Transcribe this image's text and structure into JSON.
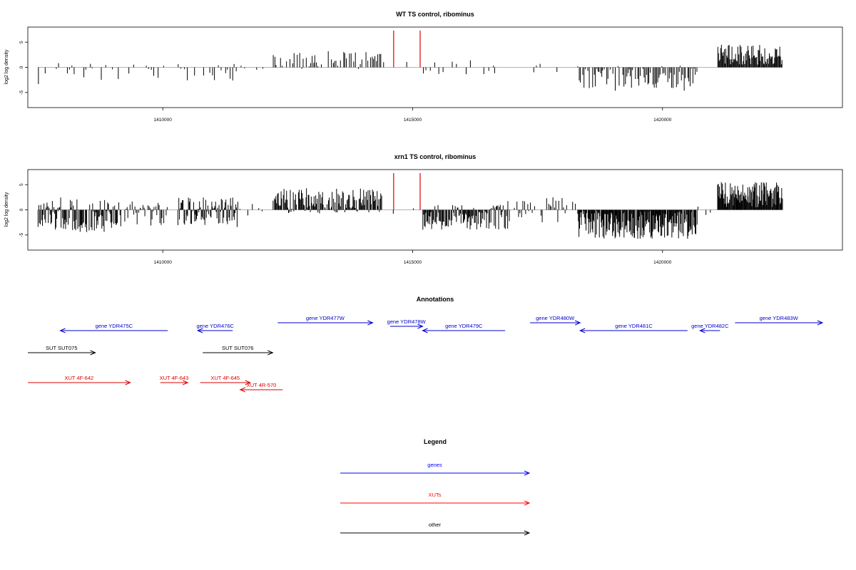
{
  "chart_data": [
    {
      "type": "bar",
      "title": "WT TS control, ribominus",
      "ylabel": "log2 log density",
      "xlim": [
        1407300,
        1423600
      ],
      "ylim": [
        -8,
        8
      ],
      "x_ticks": [
        1410000,
        1415000,
        1420000
      ],
      "y_ticks": [
        -5,
        0,
        5
      ],
      "bar_color": "#000000",
      "marker_color": "#dd0000",
      "markers": [
        {
          "x": 1414620,
          "value": 7.3
        },
        {
          "x": 1415150,
          "value": 7.3
        }
      ],
      "regions": [
        {
          "start": 1407500,
          "end": 1409100,
          "step": 45,
          "mean": -1.2,
          "amp": 2.2,
          "density": 0.55
        },
        {
          "start": 1409100,
          "end": 1410200,
          "step": 50,
          "mean": -0.8,
          "amp": 2.0,
          "density": 0.4
        },
        {
          "start": 1410300,
          "end": 1411500,
          "step": 45,
          "mean": -1.0,
          "amp": 2.0,
          "density": 0.5
        },
        {
          "start": 1411500,
          "end": 1412200,
          "step": 60,
          "mean": 0.0,
          "amp": 0.6,
          "density": 0.15
        },
        {
          "start": 1412200,
          "end": 1414400,
          "step": 30,
          "mean": 1.5,
          "amp": 2.0,
          "density": 0.7
        },
        {
          "start": 1414400,
          "end": 1415200,
          "step": 60,
          "mean": 0.3,
          "amp": 0.8,
          "density": 0.15
        },
        {
          "start": 1415200,
          "end": 1416900,
          "step": 45,
          "mean": -0.4,
          "amp": 1.8,
          "density": 0.45
        },
        {
          "start": 1416900,
          "end": 1418300,
          "step": 70,
          "mean": 0.3,
          "amp": 1.5,
          "density": 0.2
        },
        {
          "start": 1418300,
          "end": 1420700,
          "step": 25,
          "mean": -2.2,
          "amp": 2.5,
          "density": 0.95
        },
        {
          "start": 1420700,
          "end": 1421100,
          "step": 60,
          "mean": 0.0,
          "amp": 0.8,
          "density": 0.1
        },
        {
          "start": 1421100,
          "end": 1422400,
          "step": 15,
          "mean": 2.5,
          "amp": 2.0,
          "density": 1.0
        }
      ]
    },
    {
      "type": "bar",
      "title": "xrn1 TS control, ribominus",
      "ylabel": "log2 log density",
      "xlim": [
        1407300,
        1423600
      ],
      "ylim": [
        -8,
        8
      ],
      "x_ticks": [
        1410000,
        1415000,
        1420000
      ],
      "y_ticks": [
        -5,
        0,
        5
      ],
      "bar_color": "#000000",
      "marker_color": "#dd0000",
      "markers": [
        {
          "x": 1414620,
          "value": 7.3
        },
        {
          "x": 1415150,
          "value": 7.3
        }
      ],
      "regions": [
        {
          "start": 1407500,
          "end": 1409100,
          "step": 15,
          "mean": -1.0,
          "amp": 3.5,
          "density": 1.0
        },
        {
          "start": 1409100,
          "end": 1410100,
          "step": 20,
          "mean": -0.8,
          "amp": 2.5,
          "density": 0.8
        },
        {
          "start": 1410300,
          "end": 1411500,
          "step": 15,
          "mean": -0.5,
          "amp": 3.0,
          "density": 1.0
        },
        {
          "start": 1411500,
          "end": 1412200,
          "step": 40,
          "mean": 0.2,
          "amp": 1.5,
          "density": 0.4
        },
        {
          "start": 1412200,
          "end": 1414400,
          "step": 15,
          "mean": 1.8,
          "amp": 2.5,
          "density": 1.0
        },
        {
          "start": 1414400,
          "end": 1415200,
          "step": 50,
          "mean": 0.0,
          "amp": 0.8,
          "density": 0.2
        },
        {
          "start": 1415200,
          "end": 1416900,
          "step": 15,
          "mean": -1.5,
          "amp": 2.5,
          "density": 1.0
        },
        {
          "start": 1416900,
          "end": 1418300,
          "step": 30,
          "mean": 0.0,
          "amp": 2.5,
          "density": 0.6
        },
        {
          "start": 1418300,
          "end": 1420700,
          "step": 12,
          "mean": -2.8,
          "amp": 3.0,
          "density": 1.0
        },
        {
          "start": 1420700,
          "end": 1421100,
          "step": 40,
          "mean": -0.3,
          "amp": 1.2,
          "density": 0.4
        },
        {
          "start": 1421100,
          "end": 1422400,
          "step": 12,
          "mean": 3.0,
          "amp": 2.5,
          "density": 1.0
        }
      ]
    },
    {
      "type": "annotation-track",
      "title": "Annotations",
      "xlim": [
        1407300,
        1423600
      ],
      "features": [
        {
          "label": "gene YDR475C",
          "start": 1407950,
          "end": 1410100,
          "strand": "-",
          "lane": 2,
          "color": "#0000cc"
        },
        {
          "label": "gene YDR476C",
          "start": 1410700,
          "end": 1411400,
          "strand": "-",
          "lane": 2,
          "color": "#0000cc"
        },
        {
          "label": "gene YDR477W",
          "start": 1412300,
          "end": 1414200,
          "strand": "+",
          "lane": 0,
          "color": "#0000cc"
        },
        {
          "label": "gene YDR478W",
          "start": 1414550,
          "end": 1415200,
          "strand": "+",
          "lane": 1,
          "color": "#0000cc"
        },
        {
          "label": "gene YDR479C",
          "start": 1415200,
          "end": 1416850,
          "strand": "-",
          "lane": 2,
          "color": "#0000cc"
        },
        {
          "label": "gene YDR480W",
          "start": 1417350,
          "end": 1418350,
          "strand": "+",
          "lane": 0,
          "color": "#0000cc"
        },
        {
          "label": "gene YDR481C",
          "start": 1418350,
          "end": 1420500,
          "strand": "-",
          "lane": 2,
          "color": "#0000cc"
        },
        {
          "label": "gene YDR482C",
          "start": 1420750,
          "end": 1421150,
          "strand": "-",
          "lane": 2,
          "color": "#0000cc"
        },
        {
          "label": "gene YDR483W",
          "start": 1421450,
          "end": 1423200,
          "strand": "+",
          "lane": 0,
          "color": "#0000cc"
        },
        {
          "label": "SUT SUT075",
          "start": 1407300,
          "end": 1408650,
          "strand": "+",
          "lane": 3,
          "color": "#000000"
        },
        {
          "label": "SUT SUT076",
          "start": 1410800,
          "end": 1412200,
          "strand": "+",
          "lane": 3,
          "color": "#000000"
        },
        {
          "label": "XUT 4F-642",
          "start": 1407300,
          "end": 1409350,
          "strand": "+",
          "lane": 4,
          "color": "#dd0000"
        },
        {
          "label": "XUT 4F-643",
          "start": 1409950,
          "end": 1410500,
          "strand": "+",
          "lane": 4,
          "color": "#dd0000"
        },
        {
          "label": "XUT 4F-645",
          "start": 1410750,
          "end": 1411750,
          "strand": "+",
          "lane": 4,
          "color": "#dd0000"
        },
        {
          "label": "XUT 4R-570",
          "start": 1411550,
          "end": 1412400,
          "strand": "-",
          "lane": 5,
          "color": "#dd0000"
        }
      ]
    },
    {
      "type": "legend",
      "title": "Legend",
      "entries": [
        {
          "label": "genes",
          "color": "#0000ff"
        },
        {
          "label": "XUTs",
          "color": "#ff0000"
        },
        {
          "label": "other",
          "color": "#000000"
        }
      ]
    }
  ]
}
